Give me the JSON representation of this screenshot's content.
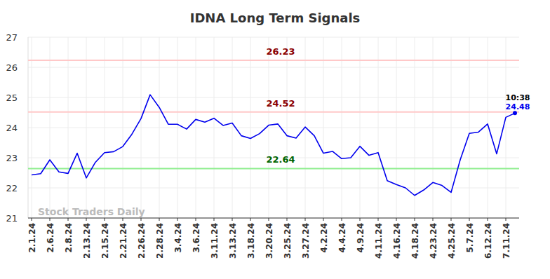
{
  "chart_data": {
    "type": "line",
    "title": "IDNA Long Term Signals",
    "watermark": "Stock Traders Daily",
    "categories": [
      "2.1.24",
      null,
      "2.6.24",
      null,
      "2.8.24",
      null,
      "2.13.24",
      null,
      "2.15.24",
      null,
      "2.21.24",
      null,
      "2.26.24",
      null,
      "2.28.24",
      null,
      "3.4.24",
      null,
      "3.6.24",
      null,
      "3.11.24",
      null,
      "3.13.24",
      null,
      "3.18.24",
      null,
      "3.20.24",
      null,
      "3.25.24",
      null,
      "3.27.24",
      null,
      "4.2.24",
      null,
      "4.4.24",
      null,
      "4.9.24",
      null,
      "4.11.24",
      null,
      "4.16.24",
      null,
      "4.18.24",
      null,
      "4.23.24",
      null,
      "4.25.24",
      null,
      "5.7.24",
      null,
      "6.12.24",
      null,
      "7.11.24",
      null
    ],
    "series": [
      {
        "name": "IDNA",
        "color": "#0000ee",
        "values": [
          22.43,
          22.47,
          22.93,
          22.53,
          22.48,
          23.15,
          22.33,
          22.85,
          23.17,
          23.2,
          23.37,
          23.78,
          24.3,
          25.09,
          24.67,
          24.11,
          24.11,
          23.95,
          24.27,
          24.18,
          24.31,
          24.07,
          24.15,
          23.73,
          23.64,
          23.8,
          24.08,
          24.12,
          23.73,
          23.65,
          24.02,
          23.73,
          23.15,
          23.21,
          22.97,
          23.0,
          23.38,
          23.08,
          23.17,
          22.24,
          22.11,
          22.0,
          21.75,
          21.93,
          22.18,
          22.08,
          21.85,
          22.93,
          23.81,
          23.85,
          24.12,
          23.13,
          24.34,
          24.48
        ]
      }
    ],
    "last_time": "10:38",
    "reference_lines": [
      {
        "value": 26.23,
        "color": "#ffc8c8"
      },
      {
        "value": 24.52,
        "color": "#ffc8c8"
      },
      {
        "value": 22.64,
        "color": "#90ee90"
      }
    ],
    "ylim": [
      21,
      27
    ],
    "yticks": [
      21,
      22,
      23,
      24,
      25,
      26,
      27
    ],
    "grid": true
  }
}
